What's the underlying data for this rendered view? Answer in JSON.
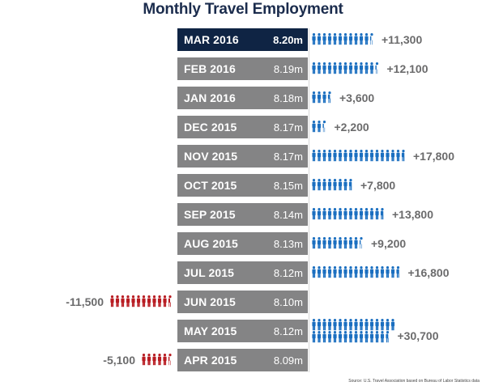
{
  "colors": {
    "current": "#0f2444",
    "bar": "#848485",
    "gain": "#1b6fc0",
    "loss": "#b81c22",
    "change_text": "#6b6b6c",
    "title": "#1b2c4d"
  },
  "chart_data": {
    "type": "pictograph",
    "title": "Monthly Travel Employment",
    "unit_note": "each icon ≈ 1,000 jobs",
    "rows": [
      {
        "month": "MAR 2016",
        "total": "8.20m",
        "change": 11300,
        "change_label": "+11,300",
        "current": true
      },
      {
        "month": "FEB 2016",
        "total": "8.19m",
        "change": 12100,
        "change_label": "+12,100"
      },
      {
        "month": "JAN 2016",
        "total": "8.18m",
        "change": 3600,
        "change_label": "+3,600"
      },
      {
        "month": "DEC 2015",
        "total": "8.17m",
        "change": 2200,
        "change_label": "+2,200"
      },
      {
        "month": "NOV 2015",
        "total": "8.17m",
        "change": 17800,
        "change_label": "+17,800"
      },
      {
        "month": "OCT 2015",
        "total": "8.15m",
        "change": 7800,
        "change_label": "+7,800"
      },
      {
        "month": "SEP 2015",
        "total": "8.14m",
        "change": 13800,
        "change_label": "+13,800"
      },
      {
        "month": "AUG 2015",
        "total": "8.13m",
        "change": 9200,
        "change_label": "+9,200"
      },
      {
        "month": "JUL 2015",
        "total": "8.12m",
        "change": 16800,
        "change_label": "+16,800"
      },
      {
        "month": "JUN 2015",
        "total": "8.10m",
        "change": -11500,
        "change_label": "-11,500"
      },
      {
        "month": "MAY 2015",
        "total": "8.12m",
        "change": 30700,
        "change_label": "+30,700"
      },
      {
        "month": "APR 2015",
        "total": "8.09m",
        "change": -5100,
        "change_label": "-5,100"
      }
    ]
  },
  "source": "Source: U.S. Travel Association based on Bureau of Labor Statistics data"
}
